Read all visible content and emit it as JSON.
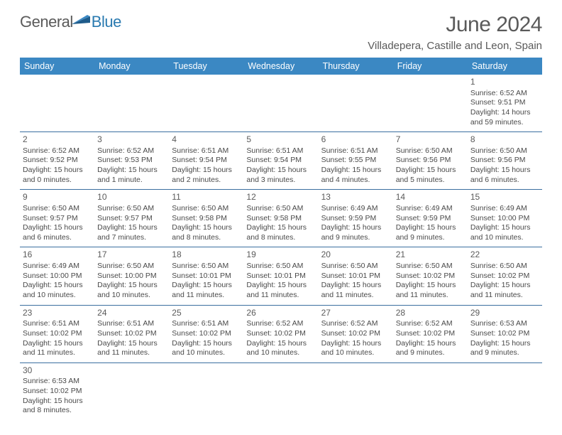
{
  "logo": {
    "text1": "General",
    "text2": "Blue"
  },
  "title": "June 2024",
  "location": "Villadepera, Castille and Leon, Spain",
  "colors": {
    "header_bg": "#3b88c3",
    "header_text": "#ffffff",
    "row_border": "#3b6fa0",
    "text": "#4a4a4a",
    "title_text": "#5a5a5a"
  },
  "days_of_week": [
    "Sunday",
    "Monday",
    "Tuesday",
    "Wednesday",
    "Thursday",
    "Friday",
    "Saturday"
  ],
  "weeks": [
    [
      null,
      null,
      null,
      null,
      null,
      null,
      {
        "n": "1",
        "sr": "6:52 AM",
        "ss": "9:51 PM",
        "dl": "14 hours and 59 minutes."
      }
    ],
    [
      {
        "n": "2",
        "sr": "6:52 AM",
        "ss": "9:52 PM",
        "dl": "15 hours and 0 minutes."
      },
      {
        "n": "3",
        "sr": "6:52 AM",
        "ss": "9:53 PM",
        "dl": "15 hours and 1 minute."
      },
      {
        "n": "4",
        "sr": "6:51 AM",
        "ss": "9:54 PM",
        "dl": "15 hours and 2 minutes."
      },
      {
        "n": "5",
        "sr": "6:51 AM",
        "ss": "9:54 PM",
        "dl": "15 hours and 3 minutes."
      },
      {
        "n": "6",
        "sr": "6:51 AM",
        "ss": "9:55 PM",
        "dl": "15 hours and 4 minutes."
      },
      {
        "n": "7",
        "sr": "6:50 AM",
        "ss": "9:56 PM",
        "dl": "15 hours and 5 minutes."
      },
      {
        "n": "8",
        "sr": "6:50 AM",
        "ss": "9:56 PM",
        "dl": "15 hours and 6 minutes."
      }
    ],
    [
      {
        "n": "9",
        "sr": "6:50 AM",
        "ss": "9:57 PM",
        "dl": "15 hours and 6 minutes."
      },
      {
        "n": "10",
        "sr": "6:50 AM",
        "ss": "9:57 PM",
        "dl": "15 hours and 7 minutes."
      },
      {
        "n": "11",
        "sr": "6:50 AM",
        "ss": "9:58 PM",
        "dl": "15 hours and 8 minutes."
      },
      {
        "n": "12",
        "sr": "6:50 AM",
        "ss": "9:58 PM",
        "dl": "15 hours and 8 minutes."
      },
      {
        "n": "13",
        "sr": "6:49 AM",
        "ss": "9:59 PM",
        "dl": "15 hours and 9 minutes."
      },
      {
        "n": "14",
        "sr": "6:49 AM",
        "ss": "9:59 PM",
        "dl": "15 hours and 9 minutes."
      },
      {
        "n": "15",
        "sr": "6:49 AM",
        "ss": "10:00 PM",
        "dl": "15 hours and 10 minutes."
      }
    ],
    [
      {
        "n": "16",
        "sr": "6:49 AM",
        "ss": "10:00 PM",
        "dl": "15 hours and 10 minutes."
      },
      {
        "n": "17",
        "sr": "6:50 AM",
        "ss": "10:00 PM",
        "dl": "15 hours and 10 minutes."
      },
      {
        "n": "18",
        "sr": "6:50 AM",
        "ss": "10:01 PM",
        "dl": "15 hours and 11 minutes."
      },
      {
        "n": "19",
        "sr": "6:50 AM",
        "ss": "10:01 PM",
        "dl": "15 hours and 11 minutes."
      },
      {
        "n": "20",
        "sr": "6:50 AM",
        "ss": "10:01 PM",
        "dl": "15 hours and 11 minutes."
      },
      {
        "n": "21",
        "sr": "6:50 AM",
        "ss": "10:02 PM",
        "dl": "15 hours and 11 minutes."
      },
      {
        "n": "22",
        "sr": "6:50 AM",
        "ss": "10:02 PM",
        "dl": "15 hours and 11 minutes."
      }
    ],
    [
      {
        "n": "23",
        "sr": "6:51 AM",
        "ss": "10:02 PM",
        "dl": "15 hours and 11 minutes."
      },
      {
        "n": "24",
        "sr": "6:51 AM",
        "ss": "10:02 PM",
        "dl": "15 hours and 11 minutes."
      },
      {
        "n": "25",
        "sr": "6:51 AM",
        "ss": "10:02 PM",
        "dl": "15 hours and 10 minutes."
      },
      {
        "n": "26",
        "sr": "6:52 AM",
        "ss": "10:02 PM",
        "dl": "15 hours and 10 minutes."
      },
      {
        "n": "27",
        "sr": "6:52 AM",
        "ss": "10:02 PM",
        "dl": "15 hours and 10 minutes."
      },
      {
        "n": "28",
        "sr": "6:52 AM",
        "ss": "10:02 PM",
        "dl": "15 hours and 9 minutes."
      },
      {
        "n": "29",
        "sr": "6:53 AM",
        "ss": "10:02 PM",
        "dl": "15 hours and 9 minutes."
      }
    ],
    [
      {
        "n": "30",
        "sr": "6:53 AM",
        "ss": "10:02 PM",
        "dl": "15 hours and 8 minutes."
      },
      null,
      null,
      null,
      null,
      null,
      null
    ]
  ],
  "labels": {
    "sunrise": "Sunrise:",
    "sunset": "Sunset:",
    "daylight": "Daylight:"
  }
}
